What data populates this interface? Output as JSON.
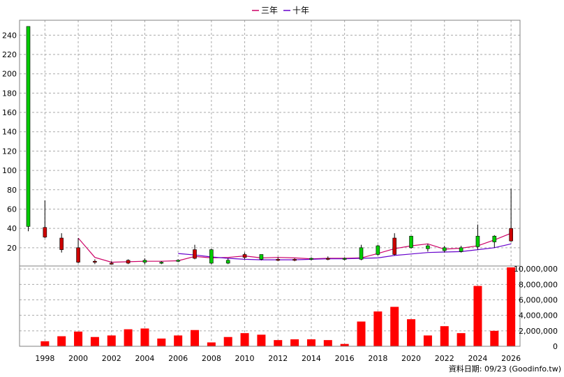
{
  "legend": {
    "items": [
      {
        "label": "三年",
        "color": "#cc0066"
      },
      {
        "label": "十年",
        "color": "#6600cc"
      }
    ]
  },
  "footer": {
    "text": "資料日期: 09/23   (Goodinfo.tw)"
  },
  "chart_data": [
    {
      "type": "candlestick",
      "title": "",
      "x": [
        1997,
        1998,
        1999,
        2000,
        2001,
        2002,
        2003,
        2004,
        2005,
        2006,
        2007,
        2008,
        2009,
        2010,
        2011,
        2012,
        2013,
        2014,
        2015,
        2016,
        2017,
        2018,
        2019,
        2020,
        2021,
        2022,
        2023,
        2024,
        2025,
        2026
      ],
      "open": [
        42,
        41,
        30,
        20,
        6,
        4,
        7,
        5,
        4,
        6,
        18,
        4,
        4,
        13,
        8,
        8,
        8,
        8,
        9,
        8,
        8,
        13,
        30,
        20,
        19,
        17,
        16,
        21,
        26,
        40
      ],
      "close": [
        249,
        31,
        18,
        5,
        5,
        4,
        4,
        7,
        5,
        7,
        9,
        18,
        7,
        10,
        13,
        8,
        7,
        9,
        8,
        9,
        20,
        22,
        13,
        32,
        22,
        20,
        20,
        32,
        32,
        27
      ],
      "high": [
        249,
        69,
        35,
        30,
        8,
        6,
        8,
        9,
        6,
        8,
        23,
        19,
        9,
        15,
        13,
        10,
        9,
        10,
        11,
        10,
        23,
        23,
        35,
        32,
        24,
        22,
        22,
        44,
        33,
        81
      ],
      "low": [
        37,
        30,
        15,
        4,
        3,
        3,
        3,
        3,
        3,
        5,
        8,
        3,
        3,
        8,
        7,
        6,
        6,
        7,
        7,
        7,
        7,
        12,
        12,
        19,
        16,
        15,
        15,
        18,
        20,
        26
      ],
      "series": [
        {
          "name": "三年",
          "color": "#cc0066",
          "values": [
            null,
            null,
            null,
            30.0,
            10.0,
            5.0,
            5.5,
            6.0,
            6.0,
            6.5,
            11.0,
            9.5,
            10.0,
            11.5,
            9.5,
            10.0,
            9.5,
            8.5,
            9.0,
            9.0,
            9.5,
            14.0,
            19.0,
            22.0,
            24.0,
            18.5,
            19.5,
            22.0,
            28.0,
            35.0
          ]
        },
        {
          "name": "十年",
          "color": "#6600cc",
          "values": [
            null,
            null,
            null,
            null,
            null,
            null,
            null,
            null,
            null,
            14.0,
            12.5,
            10.5,
            9.0,
            8.0,
            7.5,
            7.5,
            7.5,
            8.0,
            8.5,
            8.5,
            9.0,
            9.5,
            12.0,
            13.5,
            15.0,
            15.5,
            16.0,
            18.0,
            20.0,
            24.0
          ]
        }
      ],
      "ylim": [
        0,
        250
      ],
      "yticks": [
        20,
        40,
        60,
        80,
        100,
        120,
        140,
        160,
        180,
        200,
        220,
        240
      ],
      "grid": true
    },
    {
      "type": "bar",
      "x": [
        1997,
        1998,
        1999,
        2000,
        2001,
        2002,
        2003,
        2004,
        2005,
        2006,
        2007,
        2008,
        2009,
        2010,
        2011,
        2012,
        2013,
        2014,
        2015,
        2016,
        2017,
        2018,
        2019,
        2020,
        2021,
        2022,
        2023,
        2024,
        2025,
        2026
      ],
      "values": [
        0,
        650000,
        1300000,
        1900000,
        1200000,
        1400000,
        2200000,
        2300000,
        1000000,
        1400000,
        2100000,
        500000,
        1200000,
        1700000,
        1500000,
        800000,
        900000,
        900000,
        800000,
        300000,
        3200000,
        4500000,
        5100000,
        3500000,
        1400000,
        2600000,
        1700000,
        7800000,
        2000000,
        10200000
      ],
      "color": "#ff0000",
      "ylim": [
        0,
        10200000
      ],
      "yticks": [
        "0",
        "2,000,000",
        "4,000,000",
        "6,000,000",
        "8,000,000",
        "10,000,000"
      ],
      "xticks": [
        "1998",
        "2000",
        "2002",
        "2004",
        "2006",
        "2008",
        "2010",
        "2012",
        "2014",
        "2016",
        "2018",
        "2020",
        "2022",
        "2024",
        "2026"
      ],
      "grid": true
    }
  ]
}
